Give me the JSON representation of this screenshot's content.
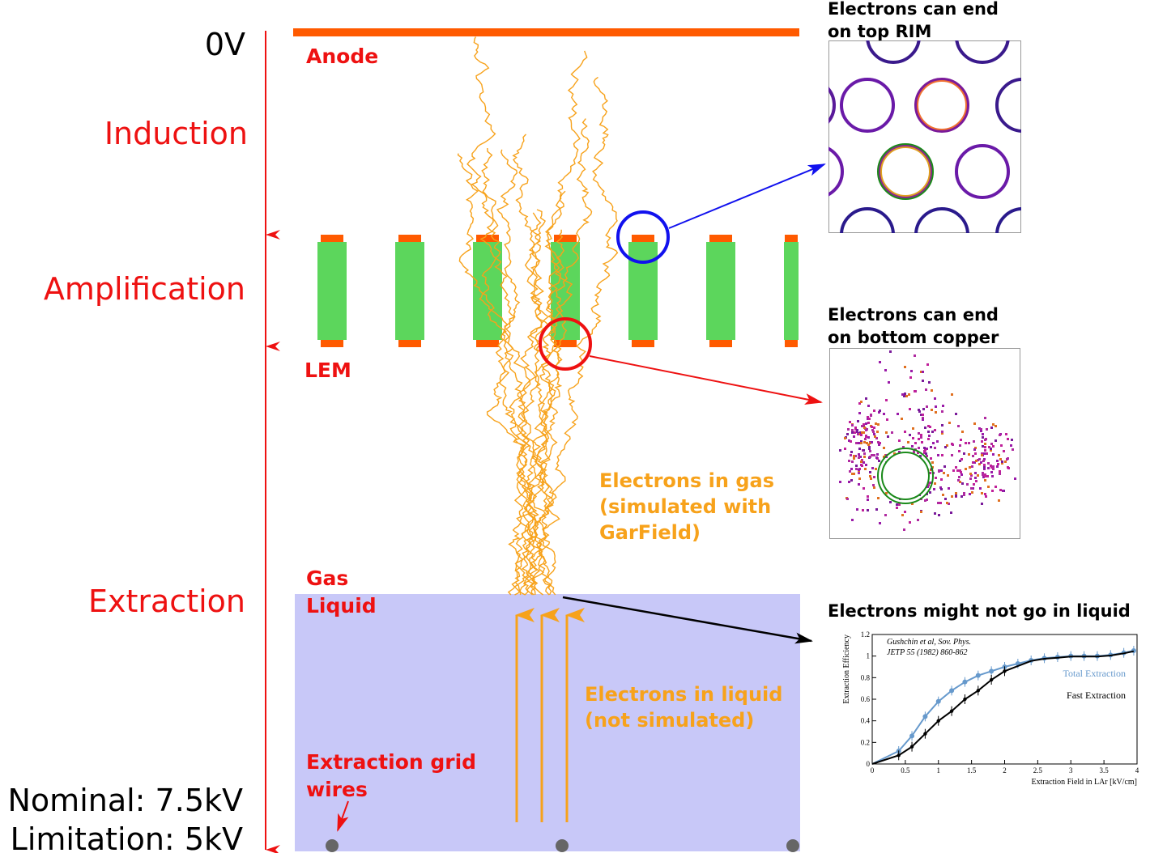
{
  "stages": {
    "voltage_top": "0V",
    "induction": "Induction",
    "amplification": "Amplification",
    "extraction": "Extraction",
    "nominal": "Nominal: 7.5kV",
    "limitation": "Limitation: 5kV"
  },
  "labels": {
    "anode": "Anode",
    "lem": "LEM",
    "gas": "Gas",
    "liquid": "Liquid",
    "grid_line1": "Extraction grid",
    "grid_line2": "wires",
    "gas_electrons_1": "Electrons in gas",
    "gas_electrons_2": "(simulated with",
    "gas_electrons_3": "GarField)",
    "liquid_electrons_1": "Electrons in liquid",
    "liquid_electrons_2": "(not simulated)"
  },
  "insets": {
    "rim_title_1": "Electrons can end",
    "rim_title_2": "on top RIM",
    "copper_title_1": "Electrons can end",
    "copper_title_2": "on bottom copper",
    "liquid_title": "Electrons might not go in liquid"
  },
  "colors": {
    "stage_red": "#ee1111",
    "copper": "#ff5a00",
    "fr4": "#5cd65c",
    "electron": "#f7a21b",
    "liquid": "#c8c8f8",
    "total_line": "#6699cc",
    "fast_line": "#000000"
  },
  "chart_data": {
    "type": "line",
    "xlabel": "Extraction Field in LAr [kV/cm]",
    "ylabel": "Extraction Efficiency",
    "xlim": [
      0,
      4
    ],
    "ylim": [
      0,
      1.2
    ],
    "xticks": [
      "0",
      "0.5",
      "1",
      "1.5",
      "2",
      "2.5",
      "3",
      "3.5",
      "4"
    ],
    "yticks": [
      "0",
      "0.2",
      "0.4",
      "0.6",
      "0.8",
      "1",
      "1.2"
    ],
    "citation_1": "Gushchin et al, Sov. Phys.",
    "citation_2": "JETP 55 (1982) 860-862",
    "series": [
      {
        "name": "Total Extraction",
        "color": "#6699cc",
        "x": [
          0.4,
          0.6,
          0.8,
          1.0,
          1.2,
          1.4,
          1.6,
          1.8,
          2.0,
          2.2,
          2.4,
          2.6,
          2.8,
          3.0,
          3.2,
          3.4,
          3.6,
          3.8,
          3.95
        ],
        "y": [
          0.12,
          0.26,
          0.44,
          0.58,
          0.68,
          0.76,
          0.82,
          0.86,
          0.9,
          0.93,
          0.96,
          0.98,
          0.99,
          1.0,
          1.0,
          1.0,
          1.01,
          1.03,
          1.05
        ]
      },
      {
        "name": "Fast Extraction",
        "color": "#000000",
        "x": [
          0.4,
          0.6,
          0.8,
          1.0,
          1.2,
          1.4,
          1.6,
          1.8,
          2.0
        ],
        "y": [
          0.08,
          0.16,
          0.28,
          0.4,
          0.49,
          0.6,
          0.68,
          0.78,
          0.86
        ]
      }
    ]
  }
}
